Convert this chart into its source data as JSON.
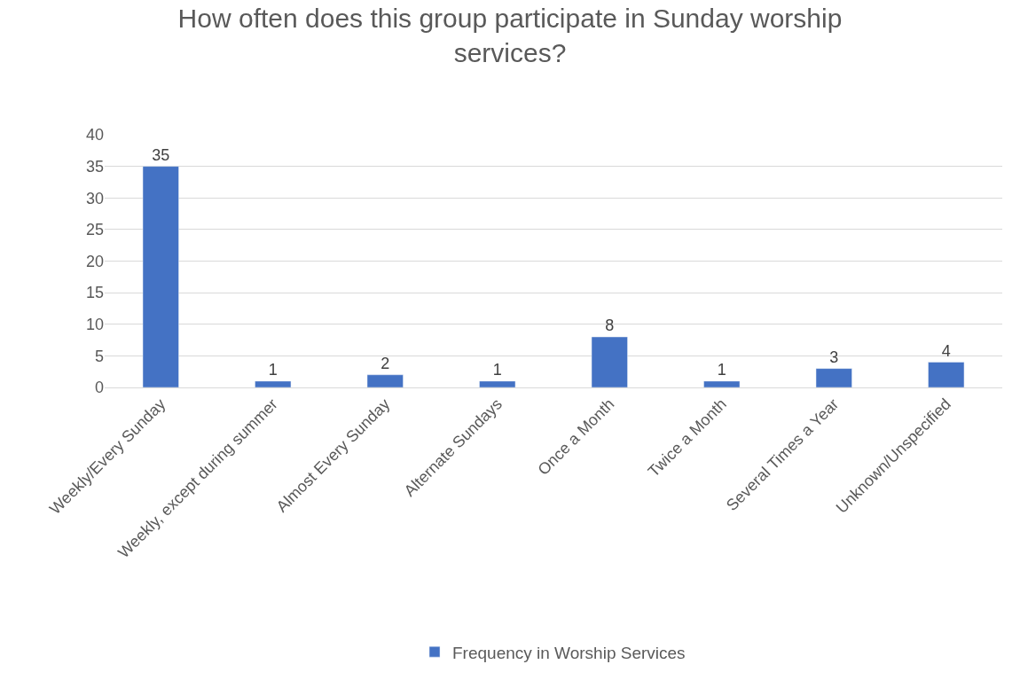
{
  "chart_data": {
    "type": "bar",
    "title": "How often does this group participate in Sunday worship services?",
    "categories": [
      "Weekly/Every Sunday",
      "Weekly, except during summer",
      "Almost Every Sunday",
      "Alternate Sundays",
      "Once a Month",
      "Twice a Month",
      "Several Times a Year",
      "Unknown/Unspecified"
    ],
    "series": [
      {
        "name": "Frequency in Worship Services",
        "color": "#4472c4",
        "values": [
          35,
          1,
          2,
          1,
          8,
          1,
          3,
          4
        ]
      }
    ],
    "ylim": [
      0,
      40
    ],
    "yticks": [
      0,
      5,
      10,
      15,
      20,
      25,
      30,
      35,
      40
    ],
    "grid": "y",
    "legend": "bottom",
    "data_labels": true
  }
}
